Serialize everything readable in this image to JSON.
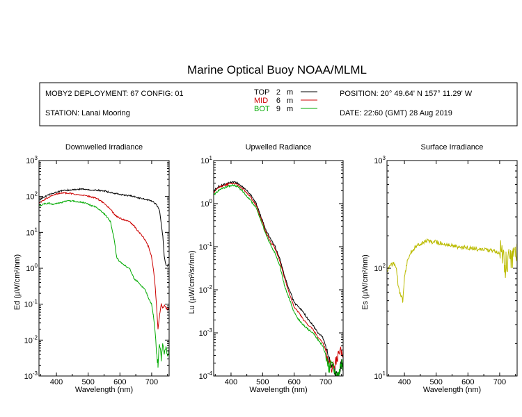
{
  "title": "Marine Optical Buoy NOAA/MLML",
  "info": {
    "deployment": "MOBY2 DEPLOYMENT: 67 CONFIG: 01",
    "station": "STATION: Lanai Mooring",
    "position": "POSITION: 20° 49.64' N   157° 11.29' W",
    "date": "DATE: 22:60 (GMT) 28 Aug 2019",
    "legend": [
      {
        "label": "TOP",
        "depth": "2",
        "unit": "m",
        "color": "#000000"
      },
      {
        "label": "MID",
        "depth": "6",
        "unit": "m",
        "color": "#cc0000"
      },
      {
        "label": "BOT",
        "depth": "9",
        "unit": "m",
        "color": "#00aa00"
      }
    ]
  },
  "chart_data": [
    {
      "type": "line",
      "title": "Downwelled Irradiance",
      "xlabel": "Wavelength (nm)",
      "ylabel": "Ed  (µW/cm²/nm)",
      "yscale": "log",
      "xlim": [
        345,
        755
      ],
      "ylim": [
        0.001,
        1000
      ],
      "xticks": [
        400,
        500,
        600,
        700
      ],
      "yticks": [
        {
          "value": 0.001,
          "base": "10",
          "exp": "-3"
        },
        {
          "value": 0.01,
          "base": "10",
          "exp": "-2"
        },
        {
          "value": 0.1,
          "base": "10",
          "exp": "-1"
        },
        {
          "value": 1,
          "base": "10",
          "exp": "0"
        },
        {
          "value": 10,
          "base": "10",
          "exp": "1"
        },
        {
          "value": 100,
          "base": "10",
          "exp": "2"
        },
        {
          "value": 1000,
          "base": "10",
          "exp": "3"
        }
      ],
      "series": [
        {
          "name": "TOP",
          "color": "#000000",
          "x": [
            345,
            360,
            375,
            390,
            405,
            420,
            435,
            450,
            465,
            480,
            495,
            510,
            525,
            540,
            555,
            570,
            585,
            600,
            615,
            630,
            645,
            660,
            675,
            690,
            705,
            715,
            725,
            735,
            740,
            745,
            750,
            755
          ],
          "y": [
            80,
            95,
            110,
            125,
            135,
            145,
            150,
            155,
            160,
            160,
            155,
            150,
            150,
            145,
            140,
            130,
            120,
            115,
            110,
            105,
            100,
            90,
            85,
            80,
            70,
            60,
            40,
            8,
            2,
            1.2,
            1.2,
            1.3
          ]
        },
        {
          "name": "MID",
          "color": "#cc0000",
          "x": [
            345,
            360,
            375,
            390,
            405,
            420,
            435,
            450,
            465,
            480,
            495,
            510,
            525,
            540,
            555,
            570,
            585,
            600,
            615,
            630,
            645,
            660,
            670,
            680,
            690,
            700,
            705,
            710,
            715,
            720,
            725,
            730,
            735,
            740,
            745,
            750,
            755
          ],
          "y": [
            65,
            80,
            95,
            110,
            120,
            125,
            125,
            120,
            115,
            110,
            105,
            95,
            90,
            75,
            60,
            45,
            30,
            25,
            22,
            20,
            15,
            10,
            8,
            6,
            4,
            2,
            1,
            0.4,
            0.1,
            0.02,
            0.05,
            0.1,
            0.08,
            0.09,
            0.08,
            0.07,
            0.08
          ]
        },
        {
          "name": "BOT",
          "color": "#00aa00",
          "x": [
            345,
            360,
            375,
            390,
            405,
            420,
            435,
            450,
            465,
            480,
            495,
            510,
            525,
            540,
            555,
            570,
            580,
            585,
            590,
            600,
            615,
            630,
            645,
            660,
            670,
            680,
            690,
            700,
            705,
            710,
            715,
            720,
            725,
            730,
            735,
            740,
            745,
            750,
            755
          ],
          "y": [
            55,
            62,
            65,
            60,
            65,
            70,
            75,
            75,
            72,
            70,
            65,
            55,
            50,
            40,
            30,
            20,
            8,
            4,
            2,
            1.5,
            1.2,
            1,
            0.5,
            0.4,
            0.3,
            0.25,
            0.15,
            0.1,
            0.05,
            0.02,
            0.005,
            0.002,
            0.008,
            0.003,
            0.01,
            0.004,
            0.006,
            0.003,
            0.005
          ]
        }
      ]
    },
    {
      "type": "line",
      "title": "Upwelled Radiance",
      "xlabel": "Wavelength (nm)",
      "ylabel": "Lu  (µW/cm²/sr/nm)",
      "yscale": "log",
      "xlim": [
        345,
        755
      ],
      "ylim": [
        0.0001,
        10
      ],
      "xticks": [
        400,
        500,
        600,
        700
      ],
      "yticks": [
        {
          "value": 0.0001,
          "base": "10",
          "exp": "-4"
        },
        {
          "value": 0.001,
          "base": "10",
          "exp": "-3"
        },
        {
          "value": 0.01,
          "base": "10",
          "exp": "-2"
        },
        {
          "value": 0.1,
          "base": "10",
          "exp": "-1"
        },
        {
          "value": 1,
          "base": "10",
          "exp": "0"
        },
        {
          "value": 10,
          "base": "10",
          "exp": "1"
        }
      ],
      "series": [
        {
          "name": "TOP",
          "color": "#000000",
          "x": [
            345,
            360,
            375,
            390,
            405,
            420,
            435,
            450,
            465,
            480,
            495,
            510,
            525,
            540,
            555,
            570,
            585,
            600,
            615,
            630,
            645,
            660,
            675,
            690,
            700,
            705,
            710,
            720,
            730,
            740,
            750,
            755
          ],
          "y": [
            2.0,
            2.5,
            2.8,
            3.0,
            3.2,
            3.0,
            2.5,
            2.0,
            1.5,
            1.0,
            0.5,
            0.25,
            0.15,
            0.1,
            0.05,
            0.02,
            0.01,
            0.005,
            0.004,
            0.003,
            0.002,
            0.0015,
            0.001,
            0.0008,
            0.0005,
            0.0003,
            0.00025,
            0.0002,
            0.00012,
            0.0001,
            0.0002,
            0.00015
          ]
        },
        {
          "name": "MID",
          "color": "#cc0000",
          "x": [
            345,
            360,
            375,
            390,
            405,
            420,
            435,
            450,
            465,
            480,
            495,
            510,
            525,
            540,
            555,
            570,
            585,
            600,
            615,
            630,
            645,
            660,
            675,
            690,
            700,
            705,
            710,
            720,
            730,
            740,
            750,
            755
          ],
          "y": [
            1.8,
            2.3,
            2.6,
            2.8,
            3.0,
            2.8,
            2.3,
            1.8,
            1.3,
            0.9,
            0.45,
            0.22,
            0.13,
            0.09,
            0.045,
            0.018,
            0.008,
            0.004,
            0.003,
            0.002,
            0.0015,
            0.0012,
            0.0008,
            0.0006,
            0.0004,
            0.00025,
            0.0002,
            0.00015,
            0.0002,
            0.0003,
            0.0004,
            0.0003
          ]
        },
        {
          "name": "BOT",
          "color": "#00aa00",
          "x": [
            345,
            360,
            375,
            390,
            405,
            420,
            435,
            450,
            465,
            480,
            495,
            510,
            525,
            540,
            555,
            570,
            585,
            600,
            615,
            630,
            645,
            660,
            675,
            690,
            700,
            705,
            710,
            720,
            730,
            740,
            750,
            755
          ],
          "y": [
            1.6,
            2.0,
            2.3,
            2.5,
            2.7,
            2.5,
            2.0,
            1.5,
            1.1,
            0.8,
            0.4,
            0.2,
            0.11,
            0.07,
            0.035,
            0.012,
            0.006,
            0.003,
            0.002,
            0.0015,
            0.0012,
            0.001,
            0.0007,
            0.0005,
            0.0003,
            0.0002,
            0.00015,
            0.0002,
            0.00012,
            0.0001,
            0.0002,
            0.00015
          ]
        }
      ]
    },
    {
      "type": "line",
      "title": "Surface Irradiance",
      "xlabel": "Wavelength (nm)",
      "ylabel": "Es  (µW/cm²/nm)",
      "yscale": "log",
      "xlim": [
        345,
        755
      ],
      "ylim": [
        10,
        1000
      ],
      "xticks": [
        400,
        500,
        600,
        700
      ],
      "yticks": [
        {
          "value": 10,
          "base": "10",
          "exp": "1"
        },
        {
          "value": 100,
          "base": "10",
          "exp": "2"
        },
        {
          "value": 1000,
          "base": "10",
          "exp": "3"
        }
      ],
      "series": [
        {
          "name": "Es",
          "color": "#bbbb00",
          "x": [
            345,
            355,
            365,
            375,
            380,
            385,
            390,
            395,
            400,
            410,
            420,
            430,
            440,
            450,
            460,
            470,
            480,
            490,
            500,
            520,
            540,
            560,
            580,
            600,
            620,
            640,
            660,
            680,
            690,
            700,
            710,
            715,
            720,
            730,
            740,
            750,
            755
          ],
          "y": [
            95,
            105,
            110,
            100,
            70,
            60,
            55,
            50,
            80,
            120,
            140,
            150,
            160,
            170,
            175,
            180,
            178,
            176,
            175,
            170,
            165,
            160,
            158,
            155,
            152,
            150,
            148,
            145,
            140,
            138,
            135,
            100,
            110,
            120,
            115,
            125,
            135
          ]
        }
      ]
    }
  ]
}
